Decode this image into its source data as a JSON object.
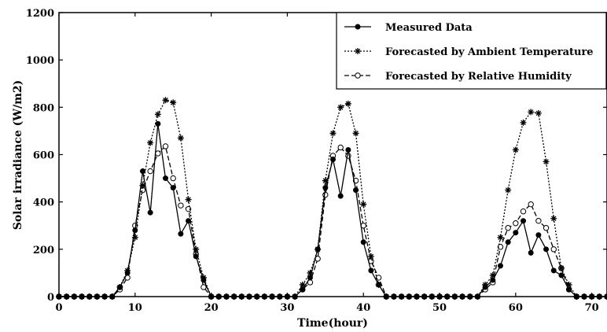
{
  "chart_data": {
    "type": "line",
    "title": "",
    "xlabel": "Time(hour)",
    "ylabel": "Solar irradiance (W/m2)",
    "xlim": [
      0,
      72
    ],
    "ylim": [
      0,
      1200
    ],
    "xticks": [
      0,
      10,
      20,
      30,
      40,
      50,
      60,
      70
    ],
    "yticks": [
      0,
      200,
      400,
      600,
      800,
      1000,
      1200
    ],
    "grid": false,
    "legend_position": "top-right",
    "x": [
      0,
      1,
      2,
      3,
      4,
      5,
      6,
      7,
      8,
      9,
      10,
      11,
      12,
      13,
      14,
      15,
      16,
      17,
      18,
      19,
      20,
      21,
      22,
      23,
      24,
      25,
      26,
      27,
      28,
      29,
      30,
      31,
      32,
      33,
      34,
      35,
      36,
      37,
      38,
      39,
      40,
      41,
      42,
      43,
      44,
      45,
      46,
      47,
      48,
      49,
      50,
      51,
      52,
      53,
      54,
      55,
      56,
      57,
      58,
      59,
      60,
      61,
      62,
      63,
      64,
      65,
      66,
      67,
      68,
      69,
      70,
      71,
      72
    ],
    "series": [
      {
        "name": "Measured Data",
        "color": "#000000",
        "marker": "filled-circle",
        "linestyle": "solid",
        "values": [
          0,
          0,
          0,
          0,
          0,
          0,
          0,
          0,
          40,
          100,
          280,
          530,
          355,
          730,
          500,
          460,
          265,
          320,
          170,
          70,
          0,
          0,
          0,
          0,
          0,
          0,
          0,
          0,
          0,
          0,
          0,
          0,
          30,
          80,
          200,
          460,
          580,
          425,
          620,
          450,
          230,
          110,
          50,
          0,
          0,
          0,
          0,
          0,
          0,
          0,
          0,
          0,
          0,
          0,
          0,
          0,
          40,
          70,
          130,
          230,
          270,
          320,
          185,
          260,
          200,
          110,
          90,
          30,
          0,
          0,
          0,
          0,
          0
        ]
      },
      {
        "name": "Forecasted by Ambient Temperature",
        "color": "#000000",
        "marker": "star",
        "linestyle": "dotted",
        "values": [
          0,
          0,
          0,
          0,
          0,
          0,
          0,
          0,
          40,
          110,
          250,
          470,
          650,
          770,
          830,
          820,
          670,
          410,
          200,
          80,
          0,
          0,
          0,
          0,
          0,
          0,
          0,
          0,
          0,
          0,
          0,
          0,
          50,
          100,
          200,
          490,
          690,
          800,
          815,
          690,
          390,
          170,
          50,
          0,
          0,
          0,
          0,
          0,
          0,
          0,
          0,
          0,
          0,
          0,
          0,
          0,
          50,
          90,
          250,
          450,
          620,
          735,
          780,
          775,
          570,
          330,
          120,
          50,
          0,
          0,
          0,
          0,
          0
        ]
      },
      {
        "name": "Forecasted by Relative Humidity",
        "color": "#000000",
        "marker": "open-circle",
        "linestyle": "dashed",
        "values": [
          0,
          0,
          0,
          0,
          0,
          0,
          0,
          0,
          30,
          80,
          300,
          450,
          530,
          605,
          635,
          500,
          385,
          370,
          180,
          40,
          0,
          0,
          0,
          0,
          0,
          0,
          0,
          0,
          0,
          0,
          0,
          0,
          30,
          60,
          160,
          430,
          595,
          630,
          595,
          490,
          300,
          150,
          80,
          0,
          0,
          0,
          0,
          0,
          0,
          0,
          0,
          0,
          0,
          0,
          0,
          0,
          30,
          60,
          210,
          290,
          310,
          360,
          390,
          320,
          290,
          200,
          120,
          30,
          0,
          0,
          0,
          0,
          0
        ]
      }
    ]
  }
}
